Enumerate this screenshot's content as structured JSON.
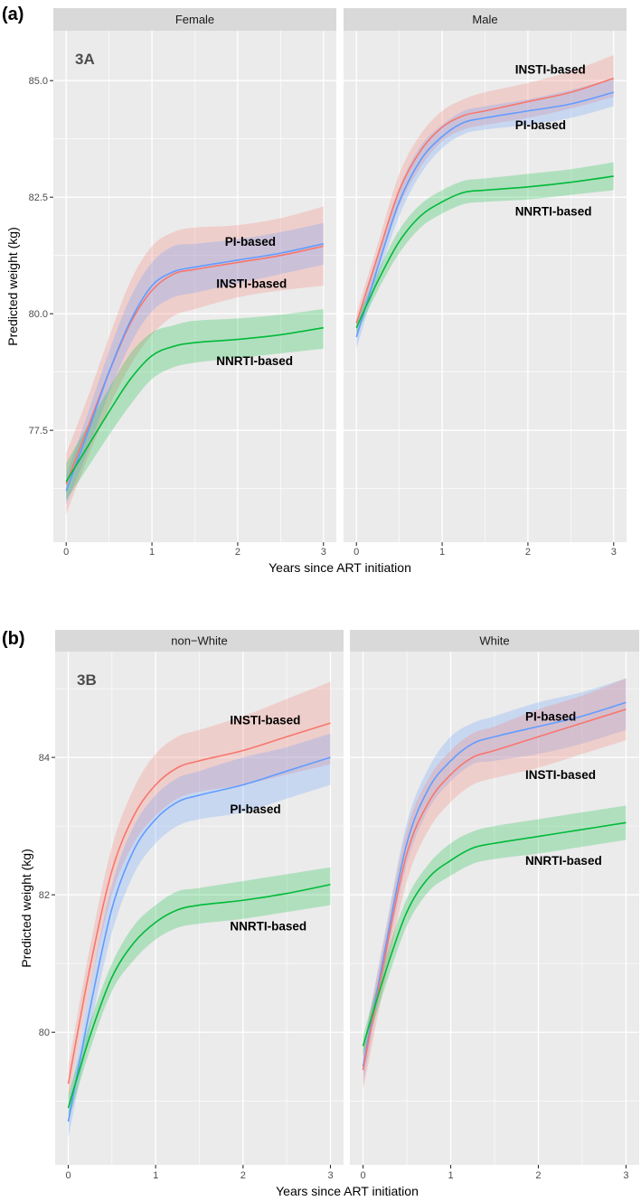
{
  "chart_data": [
    {
      "type": "line",
      "figure_tag": "(a)",
      "inner_tag": "3A",
      "xlabel": "Years since ART initiation",
      "ylabel": "Predicted  weight (kg)",
      "xlim": [
        -0.15,
        3.15
      ],
      "ylim": [
        75.1,
        86.07
      ],
      "xticks": [
        0,
        1,
        2,
        3
      ],
      "xtick_labels": [
        "0",
        "1",
        "2",
        "3"
      ],
      "yticks": [
        77.5,
        80.0,
        82.5,
        85.0
      ],
      "ytick_labels": [
        "77.5",
        "80.0",
        "82.5",
        "85.0"
      ],
      "grid": true,
      "legend": "none (direct labels)",
      "facets": [
        {
          "title": "Female",
          "x": [
            0,
            0.25,
            0.5,
            0.75,
            1,
            1.25,
            1.5,
            2,
            2.5,
            3
          ],
          "series": [
            {
              "name": "INSTI-based",
              "color": "#F8766D",
              "values": [
                76.35,
                77.55,
                78.75,
                79.8,
                80.5,
                80.85,
                80.95,
                81.1,
                81.25,
                81.45
              ],
              "lower": [
                75.7,
                76.9,
                78.0,
                78.9,
                79.55,
                79.95,
                80.1,
                80.35,
                80.5,
                80.6
              ],
              "upper": [
                77.0,
                78.2,
                79.5,
                80.7,
                81.45,
                81.75,
                81.85,
                81.9,
                82.05,
                82.3
              ]
            },
            {
              "name": "PI-based",
              "color": "#619CFF",
              "values": [
                76.2,
                77.45,
                78.75,
                79.85,
                80.6,
                80.9,
                81.0,
                81.15,
                81.3,
                81.5
              ],
              "lower": [
                75.9,
                77.05,
                78.3,
                79.35,
                80.05,
                80.35,
                80.45,
                80.65,
                80.85,
                81.05
              ],
              "upper": [
                76.55,
                77.85,
                79.2,
                80.35,
                81.1,
                81.45,
                81.5,
                81.6,
                81.75,
                81.95
              ]
            },
            {
              "name": "NNRTI-based",
              "color": "#00BA38",
              "values": [
                76.4,
                77.15,
                77.9,
                78.6,
                79.1,
                79.3,
                79.38,
                79.45,
                79.55,
                79.7
              ],
              "lower": [
                76.0,
                76.7,
                77.4,
                78.05,
                78.6,
                78.85,
                78.95,
                79.05,
                79.15,
                79.25
              ],
              "upper": [
                76.8,
                77.6,
                78.4,
                79.15,
                79.6,
                79.75,
                79.85,
                79.9,
                79.98,
                80.1
              ]
            }
          ],
          "labels": [
            {
              "text": "PI-based",
              "x": 1.85,
              "y": 81.55
            },
            {
              "text": "INSTI-based",
              "x": 1.75,
              "y": 80.65
            },
            {
              "text": "NNRTI-based",
              "x": 1.75,
              "y": 79.0
            }
          ]
        },
        {
          "title": "Male",
          "x": [
            0,
            0.25,
            0.5,
            0.75,
            1,
            1.25,
            1.5,
            2,
            2.5,
            3
          ],
          "series": [
            {
              "name": "INSTI-based",
              "color": "#F8766D",
              "values": [
                79.8,
                81.25,
                82.65,
                83.5,
                84.0,
                84.25,
                84.35,
                84.55,
                84.75,
                85.05
              ],
              "lower": [
                79.6,
                81.0,
                82.3,
                83.15,
                83.7,
                83.95,
                84.05,
                84.2,
                84.4,
                84.65
              ],
              "upper": [
                80.0,
                81.5,
                83.0,
                83.85,
                84.35,
                84.6,
                84.75,
                84.95,
                85.2,
                85.55
              ]
            },
            {
              "name": "PI-based",
              "color": "#619CFF",
              "values": [
                79.5,
                81.0,
                82.4,
                83.3,
                83.8,
                84.1,
                84.2,
                84.35,
                84.5,
                84.75
              ],
              "lower": [
                79.25,
                80.75,
                82.1,
                83.0,
                83.55,
                83.85,
                83.95,
                84.05,
                84.2,
                84.45
              ],
              "upper": [
                79.75,
                81.25,
                82.7,
                83.6,
                84.05,
                84.35,
                84.45,
                84.6,
                84.8,
                85.05
              ]
            },
            {
              "name": "NNRTI-based",
              "color": "#00BA38",
              "values": [
                79.7,
                80.7,
                81.55,
                82.1,
                82.4,
                82.6,
                82.65,
                82.72,
                82.82,
                82.95
              ],
              "lower": [
                79.55,
                80.5,
                81.3,
                81.85,
                82.15,
                82.35,
                82.4,
                82.45,
                82.55,
                82.65
              ],
              "upper": [
                79.85,
                80.9,
                81.8,
                82.35,
                82.65,
                82.85,
                82.9,
                83.0,
                83.1,
                83.25
              ]
            }
          ],
          "labels": [
            {
              "text": "INSTI-based",
              "x": 1.85,
              "y": 85.25
            },
            {
              "text": "PI-based",
              "x": 1.85,
              "y": 84.05
            },
            {
              "text": "NNRTI-based",
              "x": 1.85,
              "y": 82.2
            }
          ]
        }
      ]
    },
    {
      "type": "line",
      "figure_tag": "(b)",
      "inner_tag": "3B",
      "xlabel": "Years since ART initiation",
      "ylabel": "Predicted  weight (kg)",
      "xlim": [
        -0.15,
        3.15
      ],
      "ylim": [
        78.07,
        85.54
      ],
      "xticks": [
        0,
        1,
        2,
        3
      ],
      "xtick_labels": [
        "0",
        "1",
        "2",
        "3"
      ],
      "yticks": [
        80,
        82,
        84
      ],
      "ytick_labels": [
        "80",
        "82",
        "84"
      ],
      "grid": true,
      "legend": "none (direct labels)",
      "facets": [
        {
          "title": "non−White",
          "x": [
            0,
            0.25,
            0.5,
            0.75,
            1,
            1.25,
            1.5,
            2,
            2.5,
            3
          ],
          "series": [
            {
              "name": "INSTI-based",
              "color": "#F8766D",
              "values": [
                79.25,
                80.95,
                82.35,
                83.15,
                83.6,
                83.85,
                83.95,
                84.1,
                84.3,
                84.5
              ],
              "lower": [
                79.0,
                80.65,
                82.0,
                82.75,
                83.15,
                83.4,
                83.5,
                83.6,
                83.75,
                83.9
              ],
              "upper": [
                79.5,
                81.25,
                82.7,
                83.55,
                84.05,
                84.3,
                84.4,
                84.6,
                84.85,
                85.1
              ]
            },
            {
              "name": "PI-based",
              "color": "#619CFF",
              "values": [
                78.7,
                80.35,
                81.8,
                82.65,
                83.1,
                83.35,
                83.45,
                83.6,
                83.8,
                84.0
              ],
              "lower": [
                78.45,
                80.05,
                81.45,
                82.3,
                82.75,
                83.0,
                83.1,
                83.2,
                83.4,
                83.6
              ],
              "upper": [
                78.95,
                80.65,
                82.15,
                83.0,
                83.45,
                83.7,
                83.8,
                84.0,
                84.15,
                84.35
              ]
            },
            {
              "name": "NNRTI-based",
              "color": "#00BA38",
              "values": [
                78.9,
                79.95,
                80.8,
                81.3,
                81.6,
                81.78,
                81.85,
                81.92,
                82.02,
                82.15
              ],
              "lower": [
                78.7,
                79.75,
                80.6,
                81.05,
                81.35,
                81.52,
                81.58,
                81.65,
                81.75,
                81.85
              ],
              "upper": [
                79.1,
                80.15,
                81.0,
                81.55,
                81.85,
                82.05,
                82.1,
                82.2,
                82.3,
                82.4
              ]
            }
          ],
          "labels": [
            {
              "text": "INSTI-based",
              "x": 1.85,
              "y": 84.55
            },
            {
              "text": "PI-based",
              "x": 1.85,
              "y": 83.25
            },
            {
              "text": "NNRTI-based",
              "x": 1.85,
              "y": 81.55
            }
          ]
        },
        {
          "title": "White",
          "x": [
            0,
            0.25,
            0.5,
            0.75,
            1,
            1.25,
            1.5,
            2,
            2.5,
            3
          ],
          "series": [
            {
              "name": "PI-based",
              "color": "#619CFF",
              "values": [
                79.5,
                81.2,
                82.75,
                83.55,
                83.95,
                84.2,
                84.3,
                84.45,
                84.6,
                84.8
              ],
              "lower": [
                79.25,
                80.95,
                82.45,
                83.25,
                83.65,
                83.9,
                83.95,
                84.05,
                84.2,
                84.4
              ],
              "upper": [
                79.75,
                81.45,
                83.05,
                83.85,
                84.3,
                84.5,
                84.6,
                84.8,
                84.95,
                85.15
              ]
            },
            {
              "name": "INSTI-based",
              "color": "#F8766D",
              "values": [
                79.45,
                81.1,
                82.6,
                83.35,
                83.75,
                84.0,
                84.1,
                84.3,
                84.5,
                84.7
              ],
              "lower": [
                79.15,
                80.75,
                82.2,
                82.95,
                83.35,
                83.6,
                83.7,
                83.85,
                84.05,
                84.25
              ],
              "upper": [
                79.75,
                81.4,
                82.95,
                83.7,
                84.1,
                84.35,
                84.45,
                84.7,
                84.9,
                85.15
              ]
            },
            {
              "name": "NNRTI-based",
              "color": "#00BA38",
              "values": [
                79.8,
                80.85,
                81.75,
                82.25,
                82.5,
                82.68,
                82.75,
                82.85,
                82.95,
                83.05
              ],
              "lower": [
                79.65,
                80.65,
                81.55,
                82.05,
                82.28,
                82.45,
                82.52,
                82.6,
                82.7,
                82.8
              ],
              "upper": [
                79.95,
                81.05,
                81.95,
                82.45,
                82.75,
                82.92,
                83.0,
                83.1,
                83.2,
                83.3
              ]
            }
          ],
          "labels": [
            {
              "text": "PI-based",
              "x": 1.85,
              "y": 84.6
            },
            {
              "text": "INSTI-based",
              "x": 1.85,
              "y": 83.75
            },
            {
              "text": "NNRTI-based",
              "x": 1.85,
              "y": 82.5
            }
          ]
        }
      ]
    }
  ]
}
